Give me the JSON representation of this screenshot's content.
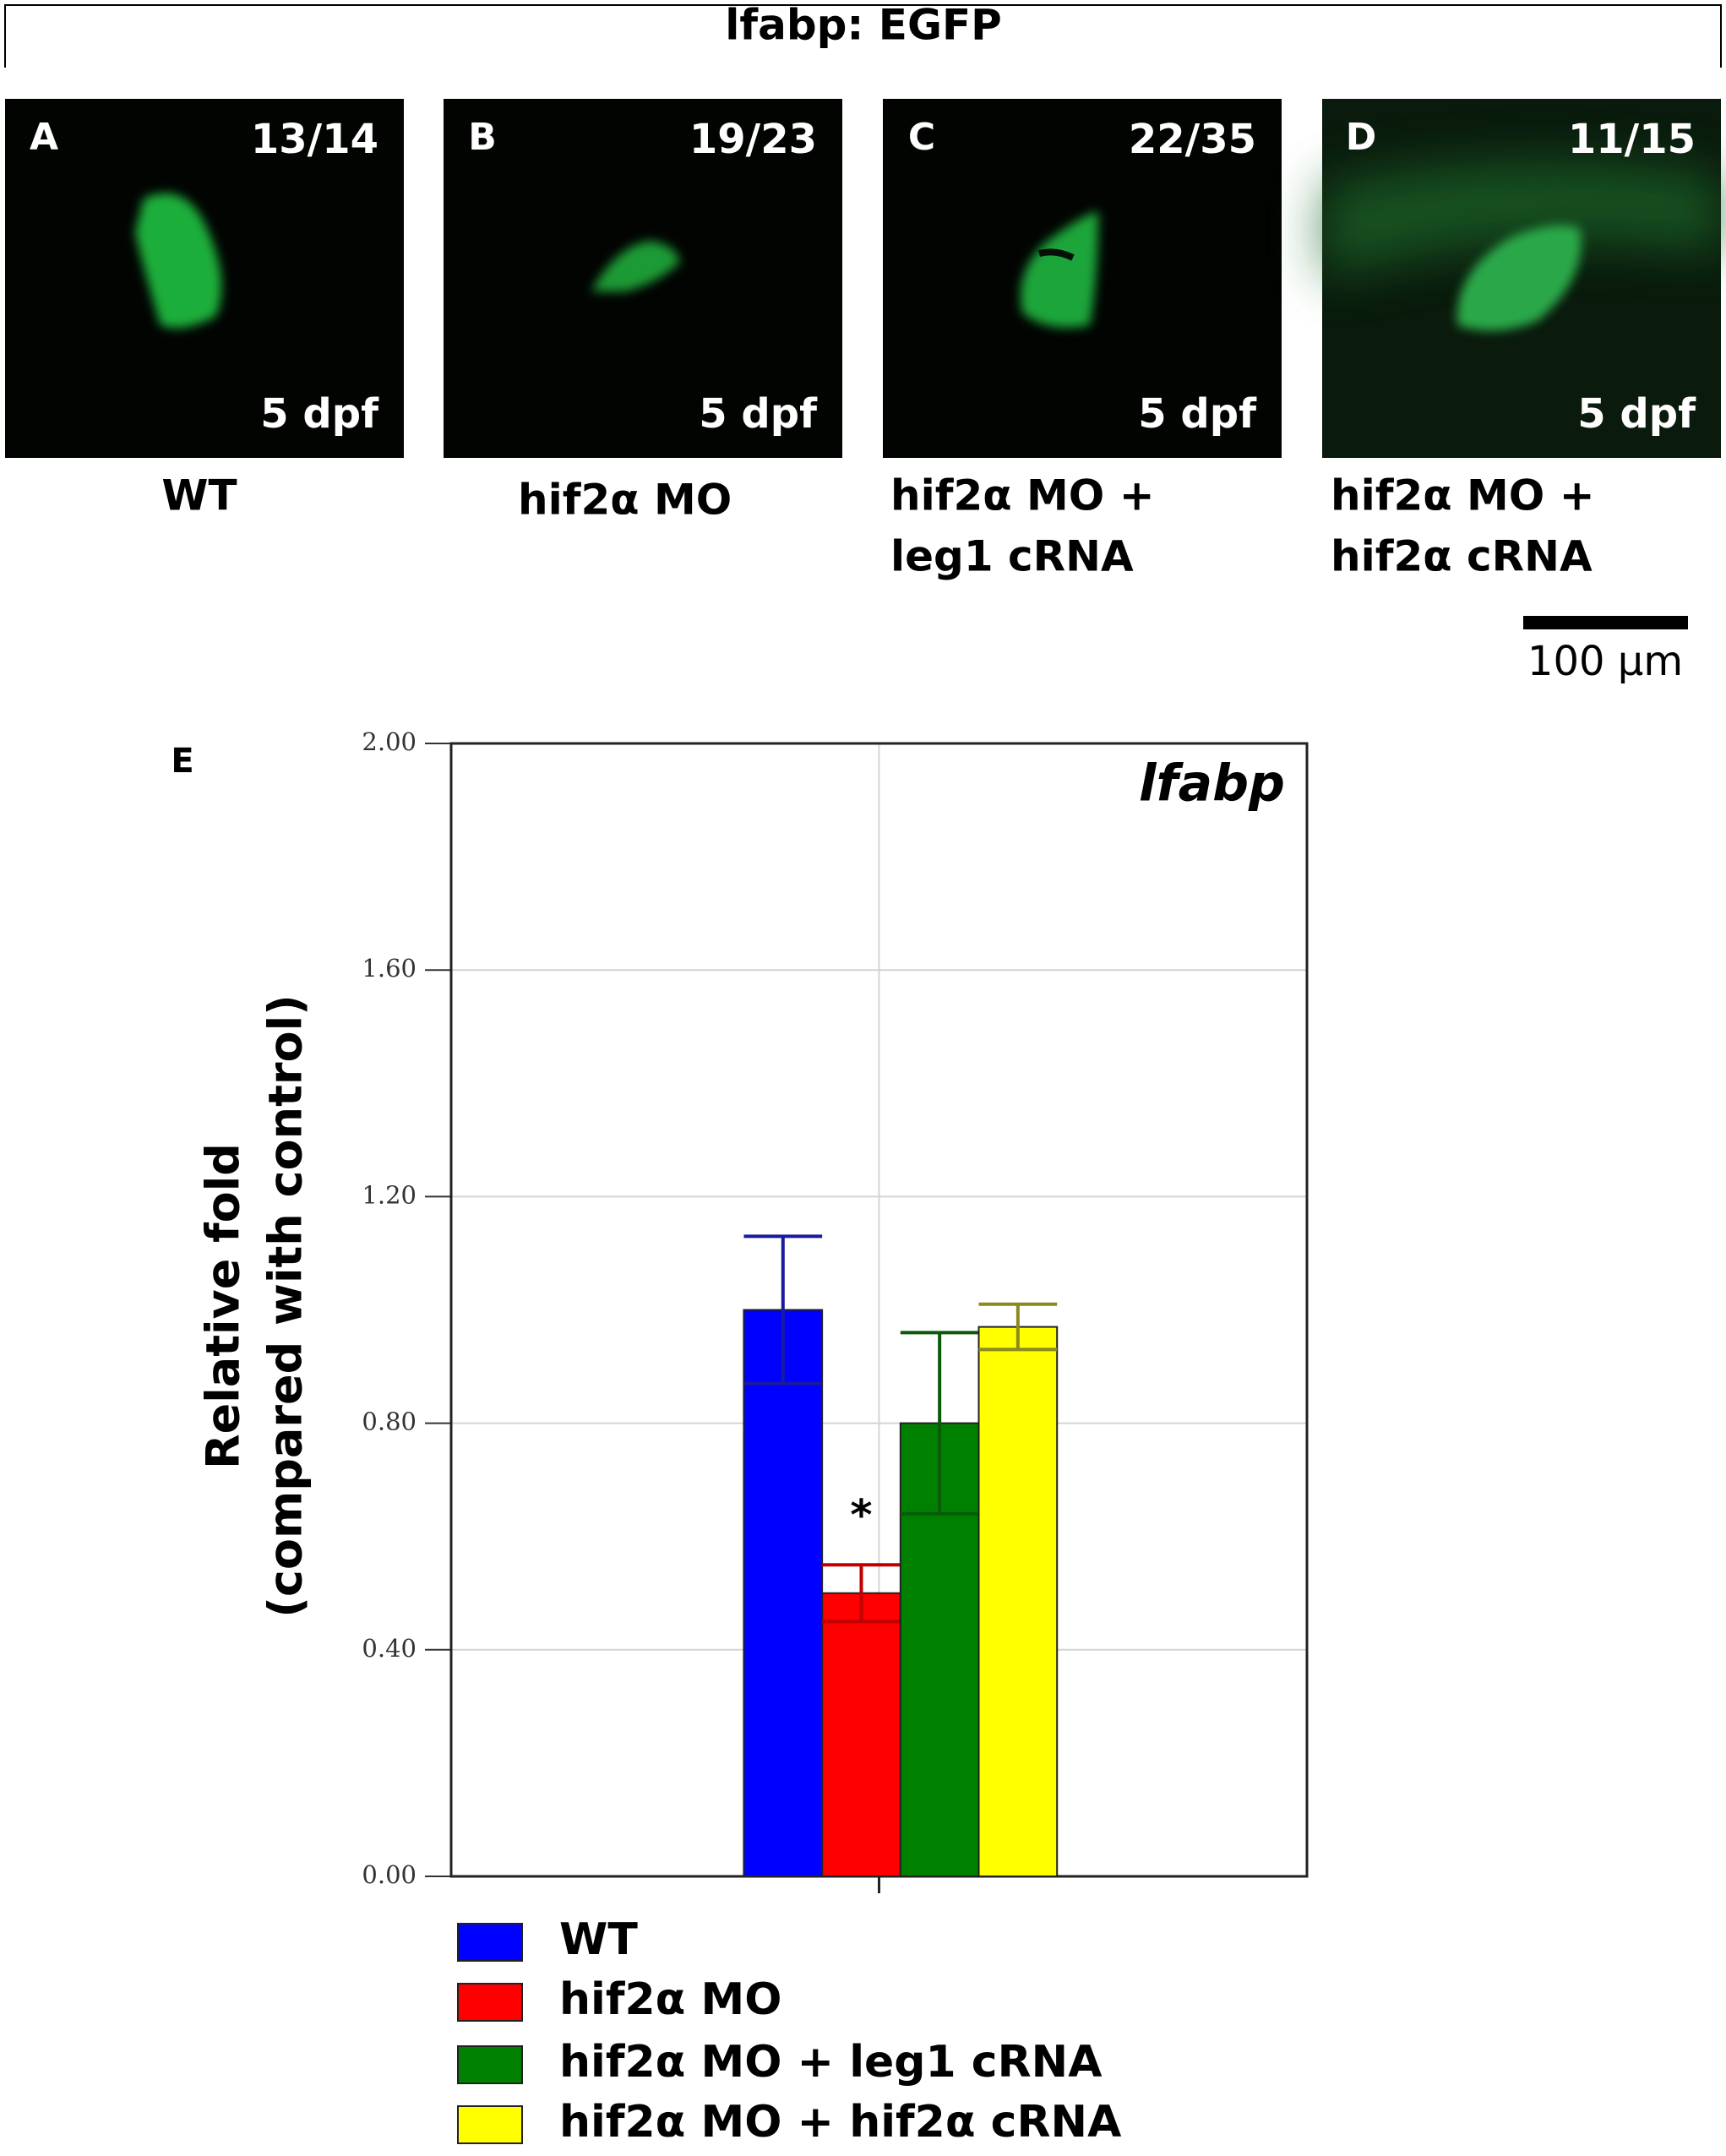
{
  "figure": {
    "title": "lfabp: EGFP",
    "panels": [
      {
        "letter": "A",
        "count": "13/14",
        "stage": "5 dpf",
        "label": [
          "WT"
        ]
      },
      {
        "letter": "B",
        "count": "19/23",
        "stage": "5 dpf",
        "label": [
          "hif2α MO"
        ]
      },
      {
        "letter": "C",
        "count": "22/35",
        "stage": "5 dpf",
        "label": [
          "hif2α MO +",
          "leg1 cRNA"
        ]
      },
      {
        "letter": "D",
        "count": "11/15",
        "stage": "5 dpf",
        "label": [
          "hif2α MO +",
          "hif2α cRNA"
        ]
      }
    ],
    "scale_bar": "100 μm",
    "chart_letter": "E"
  },
  "chart_data": {
    "type": "bar",
    "title": "lfabp",
    "y_label": [
      "Relative fold",
      "(compared with control)"
    ],
    "categories": [
      null
    ],
    "series": [
      {
        "name": "WT",
        "color": "#0000ff",
        "errorbar_color": "#1a1aa0",
        "values": [
          1.0
        ],
        "errors": [
          0.13
        ]
      },
      {
        "name": "hif2α MO",
        "color": "#ff0000",
        "errorbar_color": "#c00000",
        "values": [
          0.5
        ],
        "errors": [
          0.05
        ]
      },
      {
        "name": "hif2α MO + leg1 cRNA",
        "color": "#008000",
        "errorbar_color": "#0a5a0a",
        "values": [
          0.8
        ],
        "errors": [
          0.16
        ]
      },
      {
        "name": "hif2α MO + hif2α cRNA",
        "color": "#ffff00",
        "errorbar_color": "#8a8a20",
        "values": [
          0.97
        ],
        "errors": [
          0.04
        ]
      }
    ],
    "annotations": [
      {
        "text": "*"
      }
    ],
    "ylim": [
      0,
      2
    ],
    "yticks": [
      {
        "value": 0,
        "label": "0.00"
      },
      {
        "value": 0.4,
        "label": "0.40"
      },
      {
        "value": 0.8,
        "label": "0.80"
      },
      {
        "value": 1.2,
        "label": "1.20"
      },
      {
        "value": 1.6,
        "label": "1.60"
      },
      {
        "value": 2,
        "label": "2.00"
      }
    ],
    "grid": true
  }
}
